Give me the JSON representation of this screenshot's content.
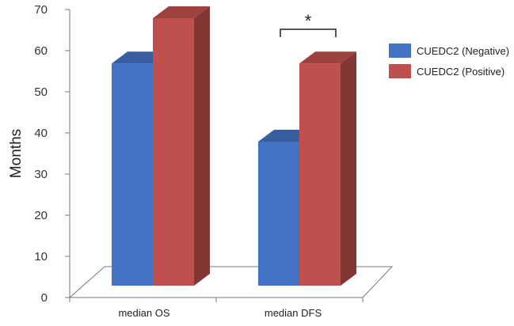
{
  "chart_data": {
    "type": "bar",
    "categories": [
      "median OS",
      "median DFS"
    ],
    "series": [
      {
        "name": "CUEDC2 (Negative)",
        "values": [
          54,
          35
        ],
        "color": "#4472C4"
      },
      {
        "name": "CUEDC2 (Positive)",
        "values": [
          65,
          54
        ],
        "color": "#C0504D"
      }
    ],
    "ylabel": "Months",
    "ylim": [
      0,
      70
    ],
    "yticks": [
      0,
      10,
      20,
      30,
      40,
      50,
      60,
      70
    ],
    "grid": false,
    "legend_position": "right",
    "style": "3d",
    "annotations": [
      {
        "text": "*",
        "category": "median DFS"
      }
    ]
  }
}
